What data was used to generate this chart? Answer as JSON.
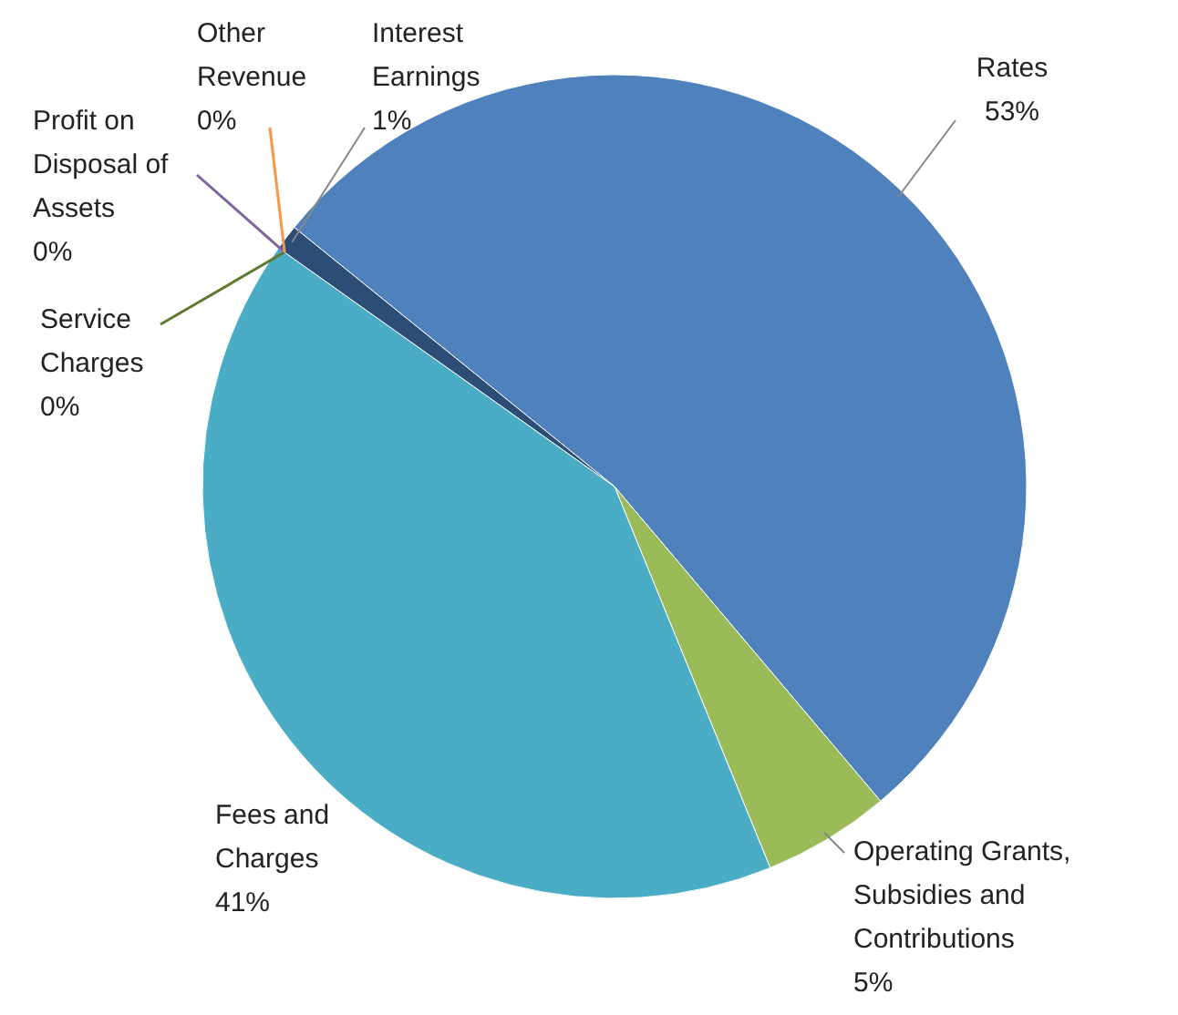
{
  "chart_data": {
    "type": "pie",
    "categories": [
      "Rates",
      "Operating Grants, Subsidies and Contributions",
      "Fees and Charges",
      "Service Charges",
      "Profit on Disposal of Assets",
      "Other Revenue",
      "Interest Earnings"
    ],
    "values": [
      53,
      5,
      41,
      0,
      0,
      0,
      1
    ],
    "value_labels": [
      "53%",
      "5%",
      "41%",
      "0%",
      "0%",
      "0%",
      "1%"
    ],
    "colors": [
      "#4f81bd",
      "#9bbb59",
      "#4bacc6",
      "#5d7a2f",
      "#8064a2",
      "#f79646",
      "#2c4d75"
    ]
  }
}
